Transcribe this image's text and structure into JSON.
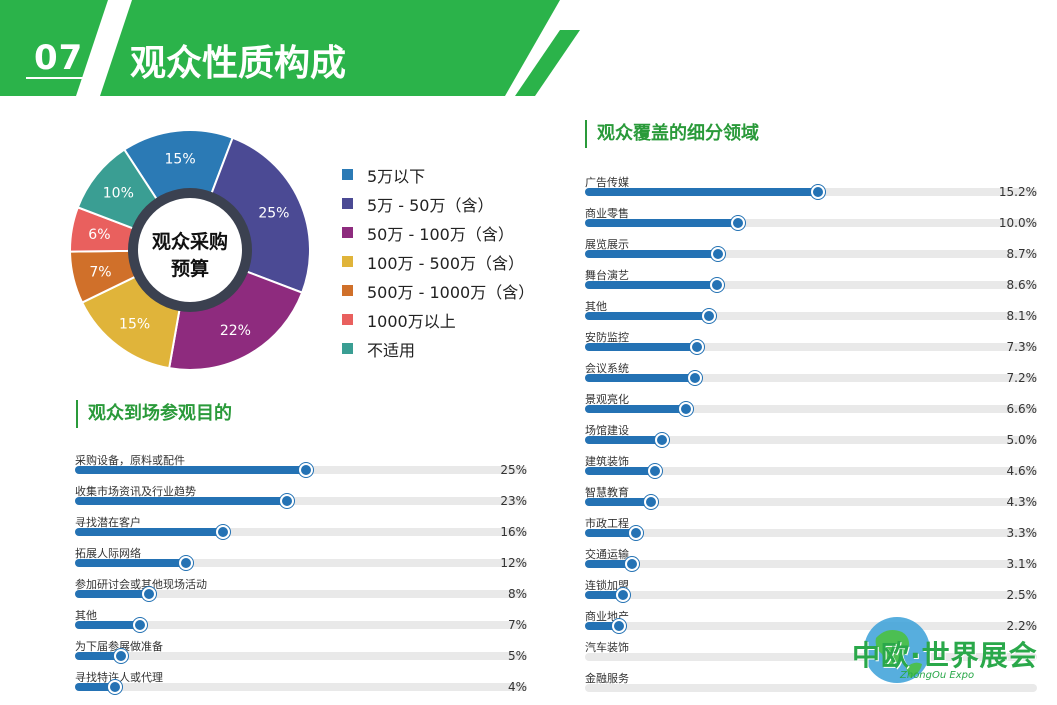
{
  "header": {
    "number": "07",
    "title": "观众性质构成"
  },
  "colors": {
    "banner_green": "#2bb34a",
    "bar_blue": "#2472b4",
    "title_green": "#2a9a3a"
  },
  "pie_center_text": [
    "观众采购",
    "预算"
  ],
  "chart_data": [
    {
      "type": "pie",
      "title": "",
      "categories": [
        "5万以下",
        "5万 - 50万（含）",
        "50万 - 100万（含）",
        "100万 - 500万（含）",
        "500万 - 1000万（含）",
        "1000万以上",
        "不适用"
      ],
      "values": [
        15,
        25,
        22,
        15,
        7,
        6,
        10
      ],
      "labels": [
        "15%",
        "25%",
        "22%",
        "15%",
        "7%",
        "6%",
        "10%"
      ],
      "colors": [
        "#2b7ab5",
        "#4b4a94",
        "#8e2b7e",
        "#e0b43a",
        "#d0702a",
        "#e9605e",
        "#3a9e93"
      ],
      "legend_position": "right"
    },
    {
      "type": "bar",
      "title": "观众到场参观目的",
      "categories": [
        "采购设备，原料或配件",
        "收集市场资讯及行业趋势",
        "寻找潜在客户",
        "拓展人际网络",
        "参加研讨会或其他现场活动",
        "其他",
        "为下届参展做准备",
        "寻找特许人或代理"
      ],
      "values": [
        25,
        23,
        16,
        12,
        8,
        7,
        5,
        4
      ],
      "labels": [
        "25%",
        "23%",
        "16%",
        "12%",
        "8%",
        "7%",
        "5%",
        "4%"
      ],
      "unit": "%"
    },
    {
      "type": "bar",
      "title": "观众覆盖的细分领域",
      "categories": [
        "广告传媒",
        "商业零售",
        "展览展示",
        "舞台演艺",
        "其他",
        "安防监控",
        "会议系统",
        "景观亮化",
        "场馆建设",
        "建筑装饰",
        "智慧教育",
        "市政工程",
        "交通运输",
        "连锁加盟",
        "商业地产",
        "汽车装饰",
        "金融服务"
      ],
      "values": [
        15.2,
        10.0,
        8.7,
        8.6,
        8.1,
        7.3,
        7.2,
        6.6,
        5.0,
        4.6,
        4.3,
        3.3,
        3.1,
        2.5,
        2.2,
        null,
        null
      ],
      "labels": [
        "15.2%",
        "10.0%",
        "8.7%",
        "8.6%",
        "8.1%",
        "7.3%",
        "7.2%",
        "6.6%",
        "5.0%",
        "4.6%",
        "4.3%",
        "3.3%",
        "3.1%",
        "2.5%",
        "2.2%",
        "",
        ""
      ],
      "unit": "%"
    }
  ],
  "logo": {
    "text": "中欧·世界展会",
    "sub": "ZhongOu Expo"
  }
}
